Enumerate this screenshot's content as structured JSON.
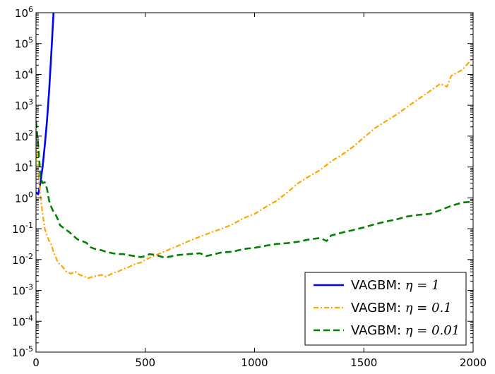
{
  "chart_data": {
    "type": "line",
    "title": "",
    "xlabel": "",
    "ylabel": "",
    "xlim": [
      0,
      2000
    ],
    "ylim_log10": [
      -5,
      6
    ],
    "yscale": "log",
    "grid": false,
    "legend_position": "bottom-right",
    "x_ticks": [
      {
        "value": 0,
        "label": "0"
      },
      {
        "value": 500,
        "label": "500"
      },
      {
        "value": 1000,
        "label": "1000"
      },
      {
        "value": 1500,
        "label": "1500"
      },
      {
        "value": 2000,
        "label": "2000"
      }
    ],
    "y_ticks": [
      {
        "exp": -5,
        "base": "10",
        "sup": "-5"
      },
      {
        "exp": -4,
        "base": "10",
        "sup": "-4"
      },
      {
        "exp": -3,
        "base": "10",
        "sup": "-3"
      },
      {
        "exp": -2,
        "base": "10",
        "sup": "-2"
      },
      {
        "exp": -1,
        "base": "10",
        "sup": "-1"
      },
      {
        "exp": 0,
        "base": "10",
        "sup": "0"
      },
      {
        "exp": 1,
        "base": "10",
        "sup": "1"
      },
      {
        "exp": 2,
        "base": "10",
        "sup": "2"
      },
      {
        "exp": 3,
        "base": "10",
        "sup": "3"
      },
      {
        "exp": 4,
        "base": "10",
        "sup": "4"
      },
      {
        "exp": 5,
        "base": "10",
        "sup": "5"
      },
      {
        "exp": 6,
        "base": "10",
        "sup": "6"
      }
    ],
    "series": [
      {
        "name": "VAGBM: η=1",
        "label_prefix": "VAGBM: ",
        "label_math": "η = 1",
        "color": "#0000ff",
        "style": "solid",
        "points": [
          [
            0,
            1.5
          ],
          [
            10,
            1.3
          ],
          [
            20,
            3
          ],
          [
            30,
            10
          ],
          [
            40,
            50
          ],
          [
            50,
            300
          ],
          [
            60,
            3000
          ],
          [
            70,
            50000
          ],
          [
            80,
            1000000
          ]
        ]
      },
      {
        "name": "VAGBM: η=0.1",
        "label_prefix": "VAGBM: ",
        "label_math": "η = 0.1",
        "color": "#ffa500",
        "style": "dashdot",
        "points": [
          [
            0,
            60
          ],
          [
            10,
            8
          ],
          [
            20,
            1.2
          ],
          [
            30,
            0.3
          ],
          [
            40,
            0.1
          ],
          [
            50,
            0.06
          ],
          [
            60,
            0.04
          ],
          [
            70,
            0.03
          ],
          [
            80,
            0.018
          ],
          [
            90,
            0.012
          ],
          [
            100,
            0.008
          ],
          [
            120,
            0.006
          ],
          [
            140,
            0.004
          ],
          [
            160,
            0.0035
          ],
          [
            180,
            0.004
          ],
          [
            200,
            0.0032
          ],
          [
            220,
            0.0028
          ],
          [
            240,
            0.0025
          ],
          [
            260,
            0.0028
          ],
          [
            280,
            0.003
          ],
          [
            300,
            0.0032
          ],
          [
            320,
            0.0028
          ],
          [
            340,
            0.0033
          ],
          [
            360,
            0.0038
          ],
          [
            380,
            0.0042
          ],
          [
            400,
            0.005
          ],
          [
            420,
            0.0055
          ],
          [
            440,
            0.0065
          ],
          [
            460,
            0.0075
          ],
          [
            480,
            0.008
          ],
          [
            500,
            0.01
          ],
          [
            550,
            0.014
          ],
          [
            600,
            0.02
          ],
          [
            650,
            0.028
          ],
          [
            700,
            0.04
          ],
          [
            750,
            0.055
          ],
          [
            800,
            0.075
          ],
          [
            850,
            0.1
          ],
          [
            900,
            0.14
          ],
          [
            950,
            0.22
          ],
          [
            1000,
            0.3
          ],
          [
            1050,
            0.5
          ],
          [
            1100,
            0.8
          ],
          [
            1150,
            1.5
          ],
          [
            1200,
            3
          ],
          [
            1250,
            5
          ],
          [
            1300,
            8
          ],
          [
            1350,
            15
          ],
          [
            1400,
            25
          ],
          [
            1450,
            45
          ],
          [
            1500,
            90
          ],
          [
            1550,
            180
          ],
          [
            1600,
            300
          ],
          [
            1650,
            500
          ],
          [
            1700,
            900
          ],
          [
            1750,
            1600
          ],
          [
            1800,
            2800
          ],
          [
            1850,
            5000
          ],
          [
            1880,
            4000
          ],
          [
            1900,
            9000
          ],
          [
            1950,
            14000
          ],
          [
            2000,
            35000
          ]
        ]
      },
      {
        "name": "VAGBM: η=0.01",
        "label_prefix": "VAGBM: ",
        "label_math": "η = 0.01",
        "color": "#008000",
        "style": "dashed",
        "points": [
          [
            0,
            300
          ],
          [
            10,
            50
          ],
          [
            20,
            5
          ],
          [
            30,
            3
          ],
          [
            40,
            3.2
          ],
          [
            50,
            2
          ],
          [
            60,
            0.8
          ],
          [
            70,
            0.5
          ],
          [
            80,
            0.35
          ],
          [
            90,
            0.28
          ],
          [
            100,
            0.2
          ],
          [
            110,
            0.13
          ],
          [
            130,
            0.1
          ],
          [
            150,
            0.08
          ],
          [
            170,
            0.06
          ],
          [
            190,
            0.045
          ],
          [
            210,
            0.04
          ],
          [
            230,
            0.035
          ],
          [
            250,
            0.025
          ],
          [
            270,
            0.022
          ],
          [
            300,
            0.02
          ],
          [
            320,
            0.018
          ],
          [
            350,
            0.016
          ],
          [
            380,
            0.015
          ],
          [
            400,
            0.015
          ],
          [
            420,
            0.014
          ],
          [
            450,
            0.013
          ],
          [
            480,
            0.012
          ],
          [
            500,
            0.013
          ],
          [
            520,
            0.015
          ],
          [
            550,
            0.014
          ],
          [
            580,
            0.012
          ],
          [
            600,
            0.012
          ],
          [
            650,
            0.014
          ],
          [
            700,
            0.015
          ],
          [
            750,
            0.016
          ],
          [
            780,
            0.013
          ],
          [
            800,
            0.014
          ],
          [
            850,
            0.017
          ],
          [
            900,
            0.018
          ],
          [
            950,
            0.022
          ],
          [
            1000,
            0.024
          ],
          [
            1050,
            0.028
          ],
          [
            1100,
            0.032
          ],
          [
            1150,
            0.034
          ],
          [
            1200,
            0.038
          ],
          [
            1250,
            0.045
          ],
          [
            1300,
            0.05
          ],
          [
            1330,
            0.04
          ],
          [
            1350,
            0.06
          ],
          [
            1400,
            0.075
          ],
          [
            1450,
            0.09
          ],
          [
            1500,
            0.11
          ],
          [
            1550,
            0.14
          ],
          [
            1600,
            0.17
          ],
          [
            1650,
            0.2
          ],
          [
            1700,
            0.25
          ],
          [
            1750,
            0.28
          ],
          [
            1800,
            0.3
          ],
          [
            1850,
            0.4
          ],
          [
            1900,
            0.55
          ],
          [
            1950,
            0.7
          ],
          [
            2000,
            0.75
          ]
        ]
      }
    ]
  }
}
